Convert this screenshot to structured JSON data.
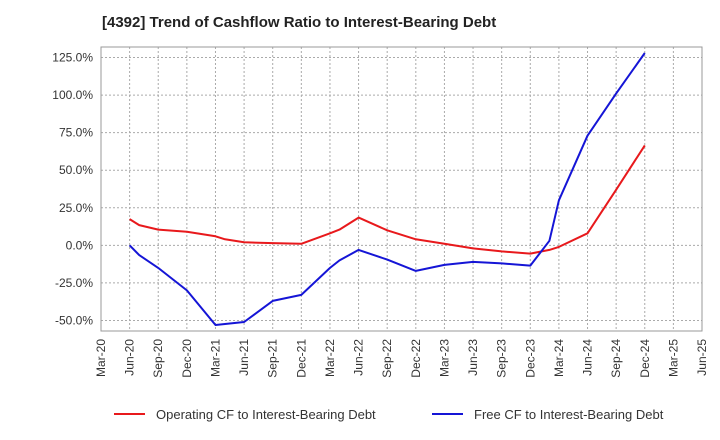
{
  "chart_data": {
    "type": "line",
    "title": "[4392]  Trend of Cashflow Ratio to Interest-Bearing Debt",
    "xlabel": "",
    "ylabel": "",
    "x_ticks": [
      "Mar-20",
      "Jun-20",
      "Sep-20",
      "Dec-20",
      "Mar-21",
      "Jun-21",
      "Sep-21",
      "Dec-21",
      "Mar-22",
      "Jun-22",
      "Sep-22",
      "Dec-22",
      "Mar-23",
      "Jun-23",
      "Sep-23",
      "Dec-23",
      "Mar-24",
      "Jun-24",
      "Sep-24",
      "Dec-24",
      "Mar-25",
      "Jun-25"
    ],
    "y_ticks": [
      125,
      100,
      75,
      50,
      25,
      0,
      -25,
      -50
    ],
    "y_tick_labels": [
      "125.0%",
      "100.0%",
      "75.0%",
      "50.0%",
      "25.0%",
      "0.0%",
      "-25.0%",
      "-50.0%"
    ],
    "ylim": [
      -57,
      132
    ],
    "grid": true,
    "legend_position": "bottom",
    "series": [
      {
        "name": "Operating CF to Interest-Bearing Debt",
        "color": "#e8191c",
        "x": [
          "Jun-20",
          "Jul-20",
          "Sep-20",
          "Dec-20",
          "Mar-21",
          "Apr-21",
          "Jun-21",
          "Sep-21",
          "Dec-21",
          "Mar-22",
          "Apr-22",
          "Jun-22",
          "Sep-22",
          "Dec-22",
          "Mar-23",
          "Jun-23",
          "Sep-23",
          "Dec-23",
          "Feb-24",
          "Mar-24",
          "Jun-24",
          "Sep-24",
          "Dec-24"
        ],
        "values": [
          17.5,
          13.5,
          10.5,
          9,
          6,
          4,
          2,
          1.5,
          1,
          8,
          10.5,
          18.5,
          10,
          4,
          1,
          -2,
          -4,
          -5.5,
          -3,
          -1,
          8,
          37,
          66.5
        ]
      },
      {
        "name": "Free CF to Interest-Bearing Debt",
        "color": "#1515d6",
        "x": [
          "Jun-20",
          "Jul-20",
          "Sep-20",
          "Dec-20",
          "Mar-21",
          "Jun-21",
          "Sep-21",
          "Dec-21",
          "Mar-22",
          "Apr-22",
          "Jun-22",
          "Sep-22",
          "Dec-22",
          "Mar-23",
          "Jun-23",
          "Sep-23",
          "Dec-23",
          "Feb-24",
          "Mar-24",
          "Jun-24",
          "Sep-24",
          "Dec-24"
        ],
        "values": [
          0,
          -6.5,
          -15,
          -30,
          -53,
          -51,
          -37,
          -33,
          -15,
          -10,
          -3,
          -9.5,
          -17,
          -13,
          -11,
          -12,
          -13.5,
          3,
          30,
          73,
          101,
          128
        ]
      }
    ]
  }
}
